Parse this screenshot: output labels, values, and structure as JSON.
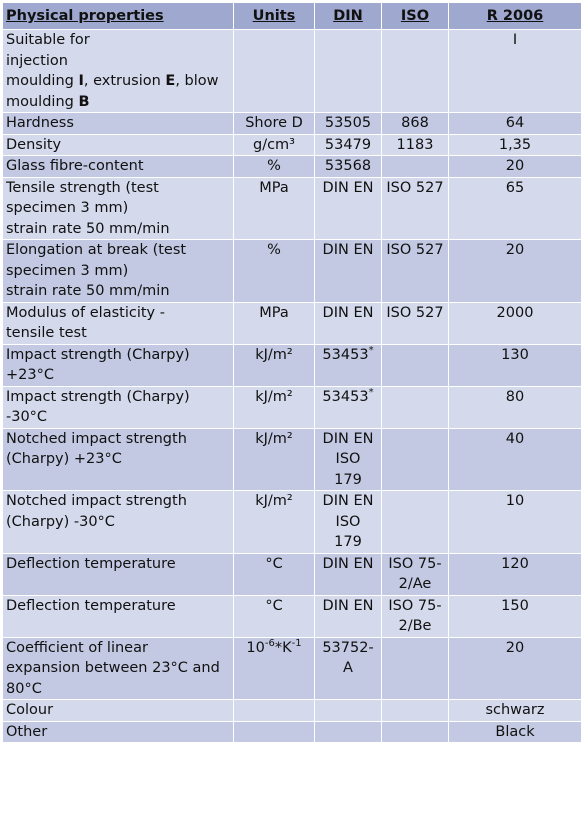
{
  "headers": {
    "property": "Physical properties",
    "units": "Units",
    "din": "DIN",
    "iso": "ISO",
    "r2006": "R 2006"
  },
  "rows": [
    {
      "property_lines": [
        "Suitable for",
        "injection"
      ],
      "prop_rich": [
        "moulding ",
        "I",
        ", extrusion ",
        "E",
        ", blow"
      ],
      "prop_rich2": [
        "moulding ",
        "B"
      ],
      "units": "",
      "din": "",
      "iso": "",
      "value": "I"
    },
    {
      "property": "Hardness",
      "units": "Shore D",
      "din": "53505",
      "iso": "868",
      "value": "64"
    },
    {
      "property": "Density",
      "units": "g/cm³",
      "din": "53479",
      "iso": "1183",
      "value": "1,35"
    },
    {
      "property": "Glass fibre-content",
      "units": "%",
      "din": "53568",
      "iso": "",
      "value": "20"
    },
    {
      "property_lines": [
        "Tensile strength (test",
        "specimen 3 mm)",
        "strain rate 50 mm/min"
      ],
      "units": "MPa",
      "din": "DIN EN",
      "iso": "ISO 527",
      "value": "65"
    },
    {
      "property_lines": [
        "Elongation at break (test",
        "specimen 3 mm)",
        "strain rate 50 mm/min"
      ],
      "units": "%",
      "din": "DIN EN",
      "iso": "ISO 527",
      "value": "20"
    },
    {
      "property_lines": [
        "Modulus of elasticity -",
        "tensile test"
      ],
      "units": "MPa",
      "din": "DIN EN",
      "iso": "ISO 527",
      "value": "2000"
    },
    {
      "property_lines": [
        "Impact strength (Charpy)",
        "+23°C"
      ],
      "units": "kJ/m²",
      "din": "53453",
      "din_sup": "*",
      "iso": "",
      "value": "130"
    },
    {
      "property_lines": [
        "Impact strength (Charpy)",
        "-30°C"
      ],
      "units": "kJ/m²",
      "din": "53453",
      "din_sup": "*",
      "iso": "",
      "value": "80"
    },
    {
      "property_lines": [
        "Notched impact strength",
        "(Charpy) +23°C"
      ],
      "units": "kJ/m²",
      "din_lines": [
        "DIN EN",
        "ISO",
        "179"
      ],
      "iso": "",
      "value": "40"
    },
    {
      "property_lines": [
        "Notched impact strength",
        "(Charpy) -30°C"
      ],
      "units": "kJ/m²",
      "din_lines": [
        "DIN EN",
        "ISO",
        "179"
      ],
      "iso": "",
      "value": "10"
    },
    {
      "property": "Deflection temperature",
      "units": "°C",
      "din": "DIN EN",
      "iso_lines": [
        "ISO 75-",
        "2/Ae"
      ],
      "value": "120"
    },
    {
      "property": "Deflection temperature",
      "units": "°C",
      "din": "DIN EN",
      "iso_lines": [
        "ISO 75-",
        "2/Be"
      ],
      "value": "150"
    },
    {
      "property_lines": [
        "Coefficient of linear",
        "expansion between 23°C and",
        "80°C"
      ],
      "units_base": "10",
      "units_exp1": "-6",
      "units_mid": "*K",
      "units_exp2": "-1",
      "din_lines": [
        "53752-",
        "A"
      ],
      "iso": "",
      "value": "20"
    },
    {
      "property": "Colour",
      "units": "",
      "din": "",
      "iso": "",
      "value": "schwarz"
    },
    {
      "property": "Other",
      "units": "",
      "din": "",
      "iso": "",
      "value": "Black"
    }
  ]
}
